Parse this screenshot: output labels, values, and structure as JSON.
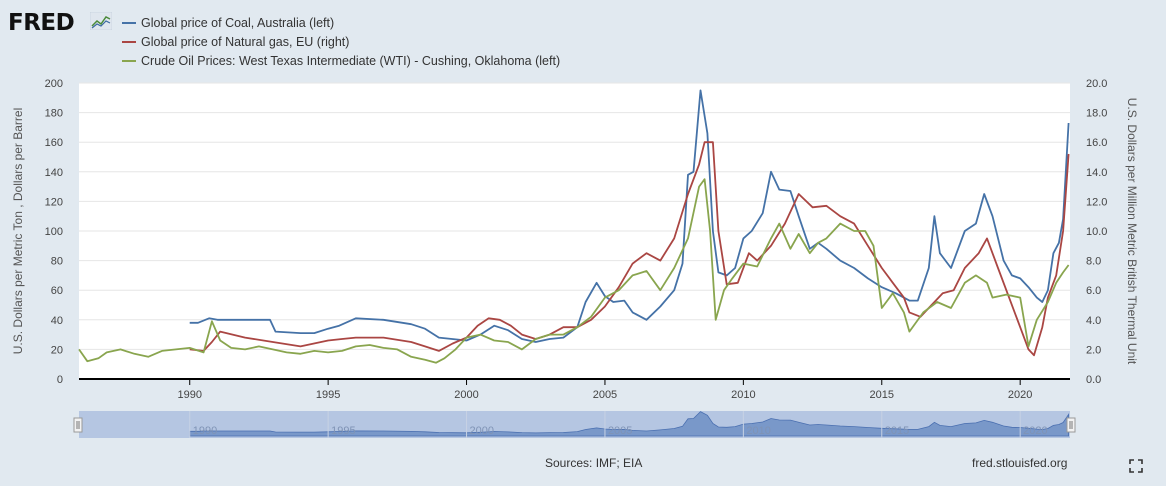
{
  "header": {
    "logo_text": "FRED",
    "logo_icon": "trend-graph-icon"
  },
  "legend": [
    {
      "label": "Global price of Coal, Australia (left)",
      "color": "#4572a7"
    },
    {
      "label": "Global price of Natural gas, EU (right)",
      "color": "#aa4643"
    },
    {
      "label": "Crude Oil Prices: West Texas Intermediate (WTI) - Cushing, Oklahoma (left)",
      "color": "#89a54e"
    }
  ],
  "footer": {
    "sources": "Sources: IMF; EIA",
    "credit": "fred.stlouisfed.org",
    "fullscreen_icon": "expand-icon"
  },
  "chart_data": {
    "type": "line",
    "title": "",
    "xlabel": "",
    "ylabel_left": "U.S. Dollars per Metric Ton , Dollars per Barrel",
    "ylabel_right": "U.S. Dollars per Million Metric British Thermal Unit",
    "xlim": [
      1986,
      2021.8
    ],
    "ylim_left": [
      0,
      200
    ],
    "ylim_right": [
      0,
      20
    ],
    "x_ticks": [
      1990,
      1995,
      2000,
      2005,
      2010,
      2015,
      2020
    ],
    "y_ticks_left": [
      "0",
      "20",
      "40",
      "60",
      "80",
      "100",
      "120",
      "140",
      "160",
      "180",
      "200"
    ],
    "y_ticks_right": [
      "0.0",
      "2.0",
      "4.0",
      "6.0",
      "8.0",
      "10.0",
      "12.0",
      "14.0",
      "16.0",
      "18.0",
      "20.0"
    ],
    "navigator_ticks": [
      1990,
      1995,
      2000,
      2005,
      2010,
      2015,
      2020
    ],
    "grid": "horizontal",
    "series": [
      {
        "name": "Global price of Coal, Australia (left)",
        "axis": "left",
        "color": "#4572a7",
        "x": [
          1990,
          1990.3,
          1990.7,
          1991,
          1992,
          1992.9,
          1993.1,
          1994,
          1994.5,
          1995,
          1995.4,
          1996,
          1997,
          1998,
          1998.5,
          1999,
          2000,
          2000.5,
          2001,
          2001.5,
          2002,
          2002.5,
          2003,
          2003.5,
          2004,
          2004.3,
          2004.7,
          2005,
          2005.3,
          2005.7,
          2006,
          2006.5,
          2007,
          2007.5,
          2007.8,
          2008,
          2008.2,
          2008.45,
          2008.7,
          2008.9,
          2009.1,
          2009.4,
          2009.7,
          2010,
          2010.3,
          2010.7,
          2011,
          2011.3,
          2011.7,
          2012,
          2012.4,
          2012.7,
          2013,
          2013.5,
          2014,
          2014.5,
          2015,
          2015.5,
          2016,
          2016.3,
          2016.7,
          2016.9,
          2017.1,
          2017.5,
          2018,
          2018.4,
          2018.7,
          2019,
          2019.4,
          2019.7,
          2020,
          2020.3,
          2020.6,
          2020.8,
          2021,
          2021.2,
          2021.4,
          2021.55,
          2021.75
        ],
        "y": [
          38,
          38,
          41,
          40,
          40,
          40,
          32,
          31,
          31,
          34,
          36,
          41,
          40,
          37,
          34,
          28,
          26,
          30,
          36,
          33,
          27,
          25,
          27,
          28,
          35,
          52,
          65,
          56,
          52,
          53,
          45,
          40,
          49,
          60,
          78,
          138,
          140,
          195,
          166,
          100,
          72,
          70,
          75,
          95,
          100,
          112,
          140,
          128,
          127,
          110,
          88,
          92,
          88,
          80,
          75,
          68,
          62,
          58,
          53,
          53,
          75,
          110,
          85,
          75,
          100,
          105,
          125,
          110,
          80,
          70,
          68,
          62,
          55,
          52,
          60,
          85,
          92,
          108,
          173
        ]
      },
      {
        "name": "Global price of Natural gas, EU (right)",
        "axis": "right",
        "color": "#aa4643",
        "x": [
          1990,
          1990.5,
          1990.8,
          1991.1,
          1992,
          1993,
          1994,
          1995,
          1995.5,
          1996,
          1997,
          1998,
          1998.5,
          1999,
          1999.5,
          2000,
          2000.4,
          2000.8,
          2001.2,
          2001.6,
          2002,
          2002.5,
          2003,
          2003.5,
          2004,
          2004.5,
          2005,
          2005.5,
          2006,
          2006.5,
          2007,
          2007.5,
          2008,
          2008.4,
          2008.6,
          2008.9,
          2009.1,
          2009.4,
          2009.8,
          2010.2,
          2010.5,
          2011,
          2011.5,
          2012,
          2012.5,
          2013,
          2013.5,
          2014,
          2014.5,
          2015,
          2015.4,
          2015.8,
          2016,
          2016.4,
          2016.8,
          2017.2,
          2017.6,
          2018,
          2018.5,
          2018.8,
          2019.2,
          2019.6,
          2020,
          2020.3,
          2020.5,
          2020.8,
          2021,
          2021.3,
          2021.55,
          2021.75
        ],
        "y": [
          2.0,
          1.9,
          2.5,
          3.2,
          2.8,
          2.5,
          2.2,
          2.6,
          2.7,
          2.8,
          2.8,
          2.5,
          2.2,
          1.9,
          2.4,
          2.8,
          3.6,
          4.1,
          4.0,
          3.6,
          3.0,
          2.7,
          3.0,
          3.5,
          3.5,
          4.0,
          4.9,
          6.2,
          7.8,
          8.5,
          8.0,
          9.5,
          12.5,
          14.5,
          16.0,
          16.0,
          10.0,
          6.4,
          6.5,
          8.5,
          8.0,
          9.0,
          10.5,
          12.5,
          11.6,
          11.7,
          11.0,
          10.5,
          9.0,
          7.5,
          6.5,
          5.5,
          4.5,
          4.2,
          5.0,
          5.8,
          6.0,
          7.5,
          8.5,
          9.5,
          7.5,
          5.5,
          3.5,
          2.0,
          1.6,
          3.5,
          5.5,
          7.0,
          10.0,
          15.2
        ]
      },
      {
        "name": "Crude Oil Prices: West Texas Intermediate (WTI) - Cushing, Oklahoma (left)",
        "axis": "left",
        "color": "#89a54e",
        "x": [
          1986,
          1986.3,
          1986.7,
          1987,
          1987.5,
          1988,
          1988.5,
          1989,
          1989.5,
          1990,
          1990.5,
          1990.8,
          1991.1,
          1991.5,
          1992,
          1992.5,
          1993,
          1993.5,
          1994,
          1994.5,
          1995,
          1995.5,
          1996,
          1996.5,
          1997,
          1997.5,
          1998,
          1998.5,
          1998.9,
          1999.2,
          1999.6,
          2000,
          2000.5,
          2001,
          2001.5,
          2002,
          2002.5,
          2003,
          2003.5,
          2004,
          2004.5,
          2005,
          2005.5,
          2006,
          2006.5,
          2007,
          2007.5,
          2008,
          2008.4,
          2008.6,
          2008.8,
          2009,
          2009.3,
          2009.6,
          2010,
          2010.5,
          2011,
          2011.3,
          2011.7,
          2012,
          2012.4,
          2012.7,
          2013,
          2013.5,
          2014,
          2014.4,
          2014.7,
          2015,
          2015.4,
          2015.8,
          2016,
          2016.5,
          2017,
          2017.5,
          2018,
          2018.4,
          2018.8,
          2019,
          2019.5,
          2020,
          2020.3,
          2020.6,
          2021,
          2021.3,
          2021.55,
          2021.75
        ],
        "y": [
          20,
          12,
          14,
          18,
          20,
          17,
          15,
          19,
          20,
          21,
          18,
          39,
          26,
          21,
          20,
          22,
          20,
          18,
          17,
          19,
          18,
          19,
          22,
          23,
          21,
          20,
          15,
          13,
          11,
          14,
          20,
          28,
          30,
          26,
          25,
          20,
          27,
          30,
          30,
          35,
          42,
          55,
          60,
          70,
          73,
          60,
          75,
          95,
          130,
          135,
          100,
          40,
          60,
          68,
          78,
          76,
          95,
          105,
          88,
          98,
          85,
          92,
          95,
          105,
          100,
          100,
          90,
          48,
          58,
          45,
          32,
          45,
          52,
          48,
          65,
          70,
          65,
          55,
          57,
          55,
          22,
          40,
          52,
          65,
          72,
          77
        ]
      }
    ]
  }
}
